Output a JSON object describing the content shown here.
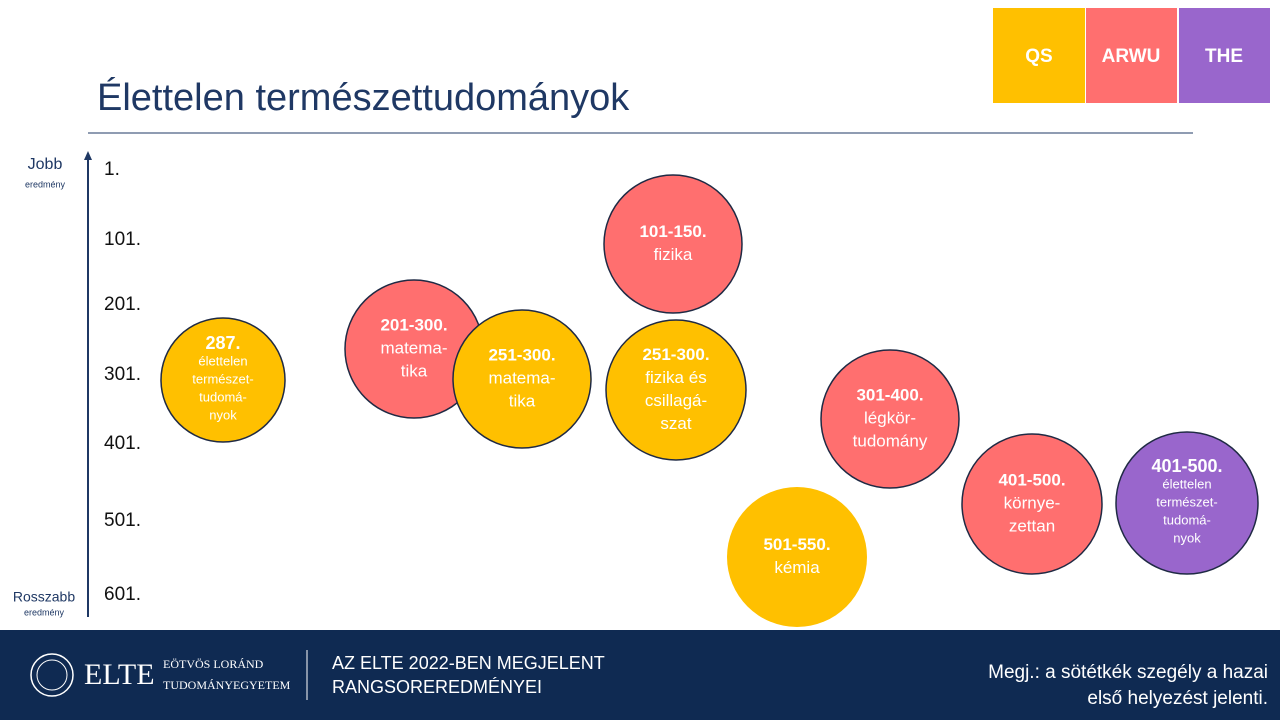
{
  "header": {
    "title": "Élettelen természettudományok"
  },
  "legend": [
    "QS",
    "ARWU",
    "THE"
  ],
  "axis": {
    "top": [
      "Jobb",
      "eredmény"
    ],
    "bottom": [
      "Rosszabb",
      "eredmény"
    ],
    "ticks": [
      "1.",
      "101.",
      "201.",
      "301.",
      "401.",
      "501.",
      "601."
    ]
  },
  "nodes": [
    {
      "rank": "287.",
      "label": [
        "élettelen",
        "természet-",
        "tudomá-",
        "nyok"
      ]
    },
    {
      "rank": "201-300.",
      "label": [
        "matema-",
        "tika"
      ]
    },
    {
      "rank": "251-300.",
      "label": [
        "matema-",
        "tika"
      ]
    },
    {
      "rank": "101-150.",
      "label": [
        "fizika"
      ]
    },
    {
      "rank": "251-300.",
      "label": [
        "fizika és",
        "csillagá-",
        "szat"
      ]
    },
    {
      "rank": "301-400.",
      "label": [
        "légkör-",
        "tudomány"
      ]
    },
    {
      "rank": "501-550.",
      "label": [
        "kémia"
      ]
    },
    {
      "rank": "401-500.",
      "label": [
        "környe-",
        "zettan"
      ]
    },
    {
      "rank": "401-500.",
      "label": [
        "élettelen",
        "természet-",
        "tudomá-",
        "nyok"
      ]
    }
  ],
  "footer": {
    "logo": {
      "name": "ELTE",
      "line1": "EÖTVÖS LORÁND",
      "line2": "TUDOMÁNYEGYETEM"
    },
    "caption": [
      "AZ ELTE 2022-BEN MEGJELENT",
      "RANGSOREREDMÉNYEI"
    ],
    "note": [
      "Megj.: a sötétkék szegély a hazai",
      "első helyezést jelenti."
    ]
  }
}
